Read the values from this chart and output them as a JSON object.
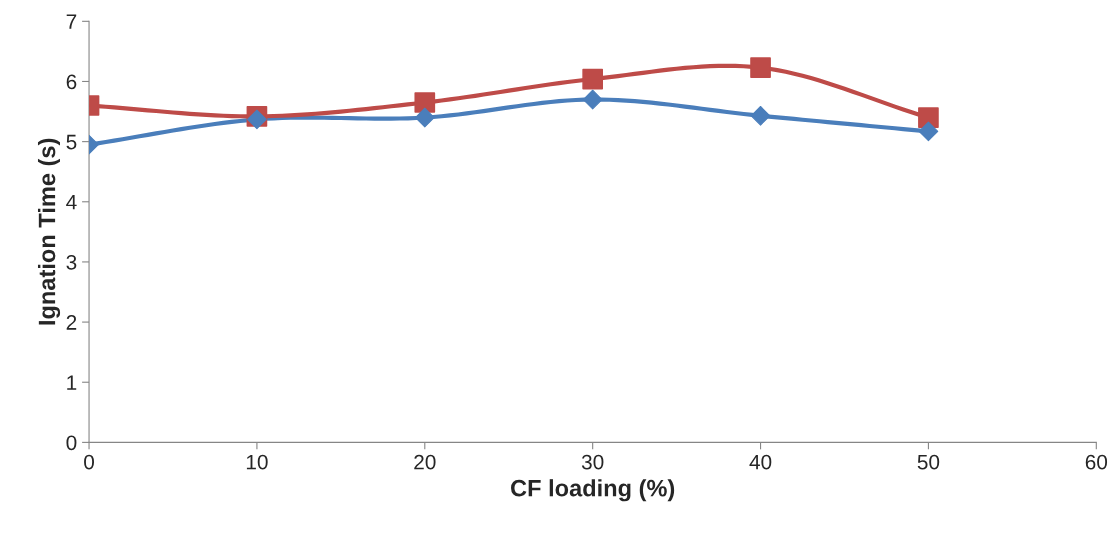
{
  "chart_data": {
    "type": "line",
    "xlabel": "CF loading (%)",
    "ylabel": "Ignation Time (s)",
    "x": [
      0,
      10,
      20,
      30,
      40,
      50
    ],
    "series": [
      {
        "color": "#4a7ebb",
        "marker": "diamond",
        "values": [
          4.95,
          5.37,
          5.4,
          5.7,
          5.43,
          5.17
        ]
      },
      {
        "color": "#be4b48",
        "marker": "square",
        "values": [
          5.6,
          5.42,
          5.65,
          6.04,
          6.23,
          5.4
        ]
      }
    ],
    "xlim": [
      0,
      60
    ],
    "xticks": [
      0,
      10,
      20,
      30,
      40,
      50,
      60
    ],
    "ylim": [
      0,
      7
    ],
    "yticks": [
      0,
      1,
      2,
      3,
      4,
      5,
      6,
      7
    ],
    "grid": false,
    "legend": false,
    "line_style": "solid"
  }
}
